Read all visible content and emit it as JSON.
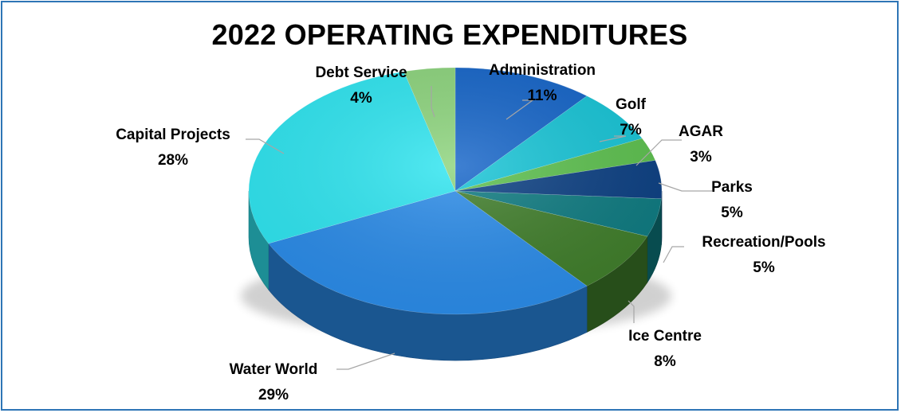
{
  "chart_data": {
    "type": "pie",
    "title": "2022 OPERATING EXPENDITURES",
    "slices": [
      {
        "label": "Administration",
        "pct_label": "11%",
        "value": 11,
        "color": "#1464c8"
      },
      {
        "label": "Golf",
        "pct_label": "7%",
        "value": 7,
        "color": "#16c4d6"
      },
      {
        "label": "AGAR",
        "pct_label": "3%",
        "value": 3,
        "color": "#5cc04e"
      },
      {
        "label": "Parks",
        "pct_label": "5%",
        "value": 5,
        "color": "#0b3f82"
      },
      {
        "label": "Recreation/Pools",
        "pct_label": "5%",
        "value": 5,
        "color": "#0d7a80"
      },
      {
        "label": "Ice Centre",
        "pct_label": "8%",
        "value": 8,
        "color": "#3f7d2a"
      },
      {
        "label": "Water World",
        "pct_label": "29%",
        "value": 29,
        "color": "#2a8be8"
      },
      {
        "label": "Capital Projects",
        "pct_label": "28%",
        "value": 28,
        "color": "#2ee5f0"
      },
      {
        "label": "Debt Service",
        "pct_label": "4%",
        "value": 4,
        "color": "#8cd47c"
      }
    ]
  }
}
